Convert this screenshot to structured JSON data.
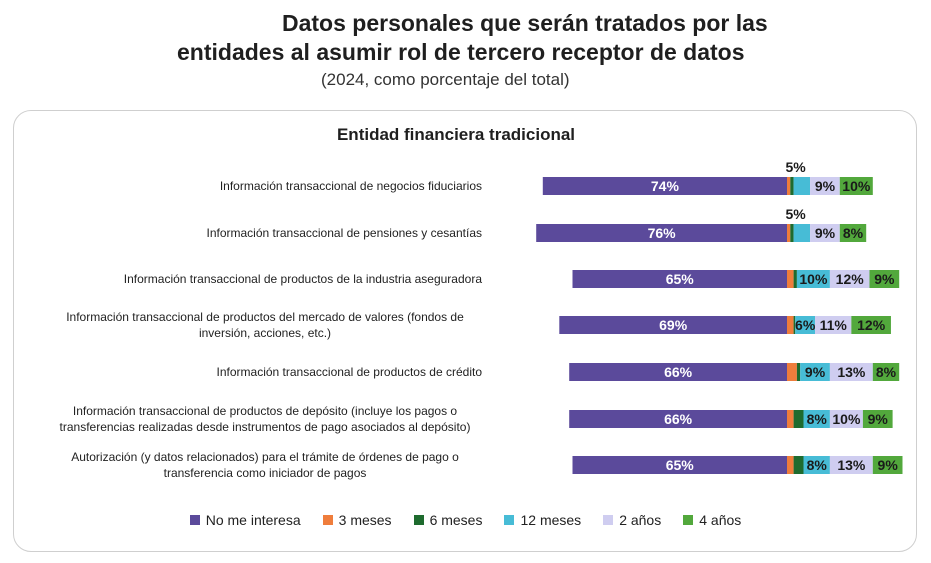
{
  "header": {
    "title_line1": "Datos personales que serán tratados por las",
    "title_line2": "entidades al asumir rol de tercero receptor de datos",
    "subtitle": "(2024, como porcentaje del total)"
  },
  "colors": {
    "No me interesa": "#5b4a9b",
    "3 meses": "#ef7d3c",
    "6 meses": "#1e6b2e",
    "12 meses": "#47bcd6",
    "2 años": "#cfcdf0",
    "4 años": "#52a83c"
  },
  "chart_data": {
    "type": "bar",
    "orientation": "horizontal-diverging",
    "title": "Entidad financiera tradicional",
    "unit": "%",
    "categories": [
      "Información transaccional de negocios fiduciarios",
      "Información transaccional de pensiones y cesantías",
      "Información transaccional de productos de la industria aseguradora",
      "Información transaccional de productos del mercado de valores (fondos de inversión, acciones, etc.)",
      "Información transaccional de productos de crédito",
      "Información transaccional de productos de depósito (incluye los pagos o transferencias realizadas desde instrumentos de pago asociados al depósito)",
      "Autorización (y datos relacionados) para el trámite de órdenes de pago o transferencia como iniciador de pagos"
    ],
    "category_lines": [
      [
        "Información transaccional de negocios fiduciarios"
      ],
      [
        "Información transaccional de pensiones y cesantías"
      ],
      [
        "Información transaccional de productos de la industria aseguradora"
      ],
      [
        "Información transaccional de productos del mercado de valores (fondos de",
        "inversión, acciones, etc.)"
      ],
      [
        "Información transaccional de productos de crédito"
      ],
      [
        "Información transaccional de productos de depósito (incluye los pagos o",
        "transferencias realizadas desde instrumentos de pago asociados al depósito)"
      ],
      [
        "Autorización (y datos relacionados) para el trámite de órdenes de pago o",
        "transferencia como iniciador de pagos"
      ]
    ],
    "series": [
      {
        "name": "No me interesa",
        "values": [
          74,
          76,
          65,
          69,
          66,
          66,
          65
        ],
        "labels": [
          "74%",
          "76%",
          "65%",
          "69%",
          "66%",
          "66%",
          "65%"
        ]
      },
      {
        "name": "3 meses",
        "values": [
          1,
          1,
          2,
          2,
          3,
          2,
          2
        ],
        "labels": [
          "",
          "",
          "",
          "",
          "",
          "",
          ""
        ]
      },
      {
        "name": "6 meses",
        "values": [
          1,
          1,
          1,
          0.5,
          1,
          3,
          3
        ],
        "labels": [
          "",
          "",
          "",
          "",
          "",
          "",
          ""
        ]
      },
      {
        "name": "12 meses",
        "values": [
          5,
          5,
          10,
          6,
          9,
          8,
          8
        ],
        "labels": [
          "5%",
          "5%",
          "10%",
          "6%",
          "9%",
          "8%",
          "8%"
        ]
      },
      {
        "name": "2 años",
        "values": [
          9,
          9,
          12,
          11,
          13,
          10,
          13
        ],
        "labels": [
          "9%",
          "9%",
          "12%",
          "11%",
          "13%",
          "10%",
          "13%"
        ]
      },
      {
        "name": "4 años",
        "values": [
          10,
          8,
          9,
          12,
          8,
          9,
          9
        ],
        "labels": [
          "10%",
          "8%",
          "9%",
          "12%",
          "8%",
          "9%",
          "9%"
        ]
      }
    ],
    "legend": [
      "No me interesa",
      "3 meses",
      "6 meses",
      "12 meses",
      "2 años",
      "4 años"
    ],
    "legend_position": "bottom"
  }
}
